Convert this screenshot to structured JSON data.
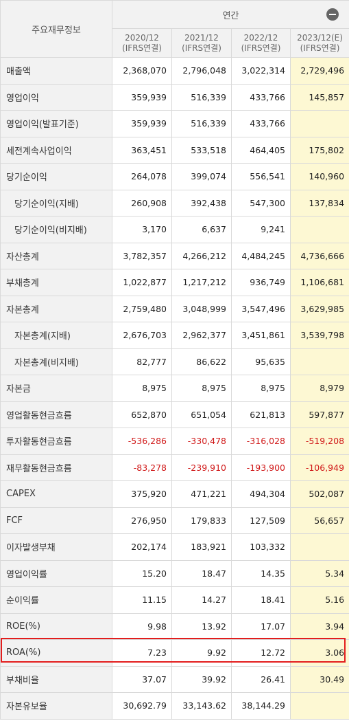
{
  "header": {
    "row_label": "주요재무정보",
    "group": "연간",
    "columns": [
      {
        "period": "2020/12",
        "basis": "(IFRS연결)"
      },
      {
        "period": "2021/12",
        "basis": "(IFRS연결)"
      },
      {
        "period": "2022/12",
        "basis": "(IFRS연결)"
      },
      {
        "period": "2023/12(E)",
        "basis": "(IFRS연결)"
      }
    ]
  },
  "rows": [
    {
      "label": "매출액",
      "values": [
        "2,368,070",
        "2,796,048",
        "3,022,314",
        "2,729,496"
      ]
    },
    {
      "label": "영업이익",
      "values": [
        "359,939",
        "516,339",
        "433,766",
        "145,857"
      ]
    },
    {
      "label": "영업이익(발표기준)",
      "values": [
        "359,939",
        "516,339",
        "433,766",
        ""
      ]
    },
    {
      "label": "세전계속사업이익",
      "values": [
        "363,451",
        "533,518",
        "464,405",
        "175,802"
      ]
    },
    {
      "label": "당기순이익",
      "values": [
        "264,078",
        "399,074",
        "556,541",
        "140,960"
      ]
    },
    {
      "label": "당기순이익(지배)",
      "indent": true,
      "values": [
        "260,908",
        "392,438",
        "547,300",
        "137,834"
      ]
    },
    {
      "label": "당기순이익(비지배)",
      "indent": true,
      "values": [
        "3,170",
        "6,637",
        "9,241",
        ""
      ]
    },
    {
      "label": "자산총계",
      "values": [
        "3,782,357",
        "4,266,212",
        "4,484,245",
        "4,736,666"
      ]
    },
    {
      "label": "부채총계",
      "values": [
        "1,022,877",
        "1,217,212",
        "936,749",
        "1,106,681"
      ]
    },
    {
      "label": "자본총계",
      "values": [
        "2,759,480",
        "3,048,999",
        "3,547,496",
        "3,629,985"
      ]
    },
    {
      "label": "자본총계(지배)",
      "indent": true,
      "values": [
        "2,676,703",
        "2,962,377",
        "3,451,861",
        "3,539,798"
      ]
    },
    {
      "label": "자본총계(비지배)",
      "indent": true,
      "values": [
        "82,777",
        "86,622",
        "95,635",
        ""
      ]
    },
    {
      "label": "자본금",
      "values": [
        "8,975",
        "8,975",
        "8,975",
        "8,979"
      ]
    },
    {
      "label": "영업활동현금흐름",
      "values": [
        "652,870",
        "651,054",
        "621,813",
        "597,877"
      ]
    },
    {
      "label": "투자활동현금흐름",
      "negative": true,
      "values": [
        "-536,286",
        "-330,478",
        "-316,028",
        "-519,208"
      ]
    },
    {
      "label": "재무활동현금흐름",
      "negative": true,
      "values": [
        "-83,278",
        "-239,910",
        "-193,900",
        "-106,949"
      ]
    },
    {
      "label": "CAPEX",
      "values": [
        "375,920",
        "471,221",
        "494,304",
        "502,087"
      ]
    },
    {
      "label": "FCF",
      "values": [
        "276,950",
        "179,833",
        "127,509",
        "56,657"
      ]
    },
    {
      "label": "이자발생부채",
      "values": [
        "202,174",
        "183,921",
        "103,332",
        ""
      ]
    },
    {
      "label": "영업이익률",
      "values": [
        "15.20",
        "18.47",
        "14.35",
        "5.34"
      ]
    },
    {
      "label": "순이익률",
      "values": [
        "11.15",
        "14.27",
        "18.41",
        "5.16"
      ]
    },
    {
      "label": "ROE(%)",
      "values": [
        "9.98",
        "13.92",
        "17.07",
        "3.94"
      ]
    },
    {
      "label": "ROA(%)",
      "highlighted": true,
      "values": [
        "7.23",
        "9.92",
        "12.72",
        "3.06"
      ]
    },
    {
      "label": "부채비율",
      "values": [
        "37.07",
        "39.92",
        "26.41",
        "30.49"
      ]
    },
    {
      "label": "자본유보율",
      "values": [
        "30,692.79",
        "33,143.62",
        "38,144.29",
        ""
      ]
    }
  ],
  "colors": {
    "header_bg": "#f2f2f2",
    "estimate_bg": "#fdf8d3",
    "negative": "#d01818",
    "highlight_border": "#e31d1d"
  },
  "icons": {
    "collapse": "minus-circle-icon"
  }
}
